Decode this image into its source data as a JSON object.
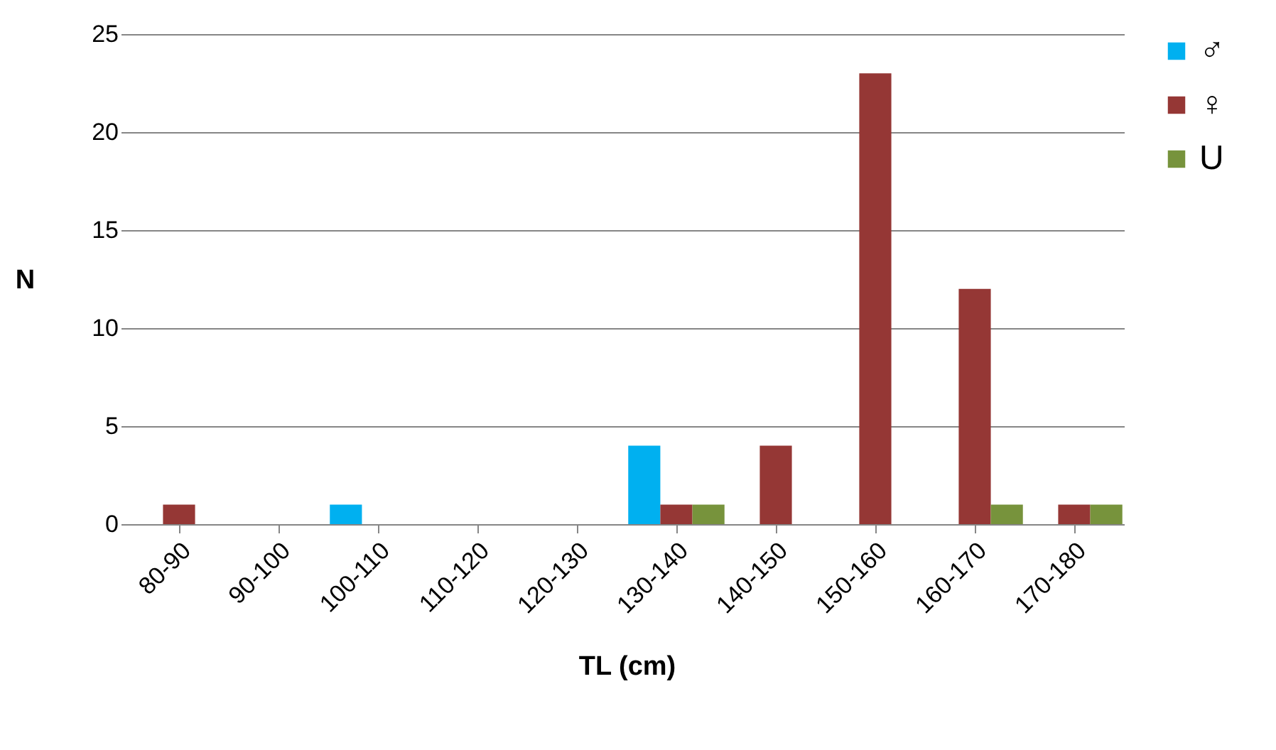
{
  "chart_data": {
    "type": "bar",
    "xlabel": "TL (cm)",
    "ylabel": "N",
    "categories": [
      "80-90",
      "90-100",
      "100-110",
      "110-120",
      "120-130",
      "130-140",
      "140-150",
      "150-160",
      "160-170",
      "170-180"
    ],
    "series": [
      {
        "name": "♂",
        "color": "#00b0f0",
        "values": [
          0,
          0,
          1,
          0,
          0,
          4,
          0,
          0,
          0,
          0
        ]
      },
      {
        "name": "♀",
        "color": "#953735",
        "values": [
          1,
          0,
          0,
          0,
          0,
          1,
          4,
          23,
          12,
          1
        ]
      },
      {
        "name": "U",
        "color": "#77933c",
        "values": [
          0,
          0,
          0,
          0,
          0,
          1,
          0,
          0,
          1,
          1
        ]
      }
    ],
    "ylim": [
      0,
      25
    ],
    "yticks": [
      0,
      5,
      10,
      15,
      20,
      25
    ],
    "grid": "y",
    "legend": "right"
  }
}
